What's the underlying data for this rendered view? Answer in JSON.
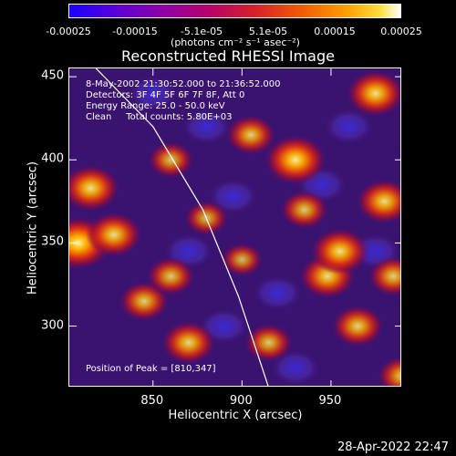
{
  "colorbar": {
    "ticks": [
      "-0.00025",
      "-0.00015",
      "-5.1e-05",
      "5.1e-05",
      "0.00015",
      "0.00025"
    ],
    "unit": "(photons cm⁻² s⁻¹ asec⁻²)"
  },
  "chart_data": {
    "type": "heatmap",
    "title": "Reconstructed RHESSI Image",
    "xlabel": "Heliocentric X (arcsec)",
    "ylabel": "Heliocentric Y (arcsec)",
    "xlim": [
      803,
      990
    ],
    "ylim": [
      263,
      455
    ],
    "xticks": [
      850,
      900,
      950
    ],
    "yticks": [
      300,
      350,
      400,
      450
    ],
    "color_range": [
      -0.00025,
      0.00025
    ],
    "colormap": "blue-purple-red-yellow-white",
    "annotations": {
      "line1": "8-May-2002 21:30:52.000 to 21:36:52.000",
      "line2": "Detectors: 3F 4F 5F 6F 7F 8F, Att 0",
      "line3": "Energy Range: 25.0 - 50.0 keV",
      "line4": "Clean     Total counts: 5.80E+03",
      "peak": "Position of Peak = [810,347]"
    },
    "hot_spots": [
      {
        "x": 808,
        "y": 350,
        "level": 1.0
      },
      {
        "x": 815,
        "y": 383,
        "level": 0.8
      },
      {
        "x": 828,
        "y": 355,
        "level": 0.75
      },
      {
        "x": 845,
        "y": 315,
        "level": 0.6
      },
      {
        "x": 860,
        "y": 330,
        "level": 0.55
      },
      {
        "x": 870,
        "y": 290,
        "level": 0.7
      },
      {
        "x": 860,
        "y": 400,
        "level": 0.5
      },
      {
        "x": 905,
        "y": 415,
        "level": 0.6
      },
      {
        "x": 915,
        "y": 290,
        "level": 0.55
      },
      {
        "x": 930,
        "y": 400,
        "level": 0.9
      },
      {
        "x": 935,
        "y": 370,
        "level": 0.55
      },
      {
        "x": 948,
        "y": 330,
        "level": 0.75
      },
      {
        "x": 955,
        "y": 345,
        "level": 0.8
      },
      {
        "x": 965,
        "y": 300,
        "level": 0.65
      },
      {
        "x": 975,
        "y": 440,
        "level": 0.8
      },
      {
        "x": 980,
        "y": 375,
        "level": 0.75
      },
      {
        "x": 985,
        "y": 330,
        "level": 0.6
      },
      {
        "x": 880,
        "y": 365,
        "level": 0.45
      },
      {
        "x": 900,
        "y": 340,
        "level": 0.4
      },
      {
        "x": 990,
        "y": 270,
        "level": 0.6
      }
    ],
    "cold_spots": [
      {
        "x": 880,
        "y": 420
      },
      {
        "x": 895,
        "y": 378
      },
      {
        "x": 870,
        "y": 345
      },
      {
        "x": 945,
        "y": 385
      },
      {
        "x": 960,
        "y": 420
      },
      {
        "x": 890,
        "y": 300
      },
      {
        "x": 930,
        "y": 275
      },
      {
        "x": 975,
        "y": 345
      },
      {
        "x": 850,
        "y": 440
      },
      {
        "x": 920,
        "y": 320
      }
    ],
    "limb_curve": [
      [
        818,
        455
      ],
      [
        850,
        420
      ],
      [
        878,
        370
      ],
      [
        898,
        318
      ],
      [
        915,
        263
      ]
    ]
  },
  "footer": "28-Apr-2022 22:47"
}
